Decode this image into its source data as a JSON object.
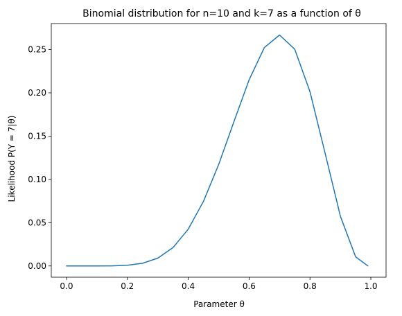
{
  "chart_data": {
    "type": "line",
    "title": "Binomial distribution for n=10 and k=7 as a function of θ",
    "xlabel": "Parameter θ",
    "ylabel": "Likelihood P(Y = 7|θ)",
    "xlim": [
      -0.05,
      1.05
    ],
    "ylim": [
      -0.013,
      0.28
    ],
    "xticks": [
      0.0,
      0.2,
      0.4,
      0.6,
      0.8,
      1.0
    ],
    "xtick_labels": [
      "0.0",
      "0.2",
      "0.4",
      "0.6",
      "0.8",
      "1.0"
    ],
    "yticks": [
      0.0,
      0.05,
      0.1,
      0.15,
      0.2,
      0.25
    ],
    "ytick_labels": [
      "0.00",
      "0.05",
      "0.10",
      "0.15",
      "0.20",
      "0.25"
    ],
    "grid": false,
    "series": [
      {
        "color": "#1f77b4",
        "x": [
          0.0,
          0.05,
          0.1,
          0.15,
          0.2,
          0.25,
          0.3,
          0.35,
          0.4,
          0.45,
          0.5,
          0.55,
          0.6,
          0.65,
          0.7,
          0.75,
          0.8,
          0.85,
          0.9,
          0.95,
          0.99
        ],
        "y": [
          0.0,
          0.0,
          0.0,
          0.0001,
          0.0008,
          0.0031,
          0.009,
          0.0212,
          0.0425,
          0.0746,
          0.1172,
          0.1665,
          0.215,
          0.2522,
          0.2668,
          0.2503,
          0.2013,
          0.1298,
          0.0574,
          0.0105,
          0.0001
        ]
      }
    ]
  }
}
